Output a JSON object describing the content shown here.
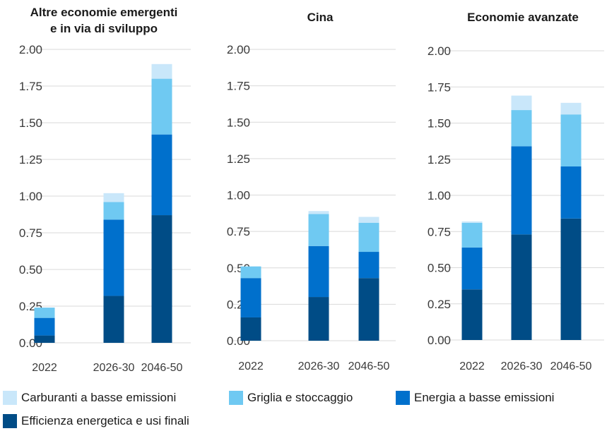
{
  "chart_data": {
    "type": "bar",
    "stacked": true,
    "colors": [
      "#004C86",
      "#0070CC",
      "#6FC9F2",
      "#C9E7FA"
    ],
    "legend": {
      "position": "bottom",
      "entries": [
        "Carburanti a basse emissioni",
        "Griglia e stoccaggio",
        "Energia a basse emissioni",
        "Efficienza energetica e usi finali"
      ]
    },
    "panels": [
      {
        "title_lines": [
          "Altre economie emergenti",
          "e in via di sviluppo"
        ],
        "categories": [
          "2022",
          "2026-30",
          "2046-50"
        ],
        "ylim": [
          0,
          2
        ],
        "yticks": [
          "0.00",
          "0.25",
          "0.50",
          "0.75",
          "1.00",
          "1.25",
          "1.50",
          "1.75",
          "2.00"
        ],
        "series": [
          {
            "name": "Efficienza energetica e usi finali",
            "values": [
              0.05,
              0.32,
              0.87
            ]
          },
          {
            "name": "Energia a basse emissioni",
            "values": [
              0.12,
              0.52,
              0.55
            ]
          },
          {
            "name": "Griglia e stoccaggio",
            "values": [
              0.07,
              0.12,
              0.38
            ]
          },
          {
            "name": "Carburanti a basse emissioni",
            "values": [
              0.0,
              0.06,
              0.1
            ]
          }
        ]
      },
      {
        "title_lines": [
          "Cina"
        ],
        "categories": [
          "2022",
          "2026-30",
          "2046-50"
        ],
        "ylim": [
          0,
          2
        ],
        "yticks": [
          "0.00",
          "0.25",
          "0.50",
          "0.75",
          "1.00",
          "1.25",
          "1.50",
          "1.75",
          "2.00"
        ],
        "series": [
          {
            "name": "Efficienza energetica e usi finali",
            "values": [
              0.16,
              0.3,
              0.43
            ]
          },
          {
            "name": "Energia a basse emissioni",
            "values": [
              0.27,
              0.35,
              0.18
            ]
          },
          {
            "name": "Griglia e stoccaggio",
            "values": [
              0.08,
              0.22,
              0.2
            ]
          },
          {
            "name": "Carburanti a basse emissioni",
            "values": [
              0.0,
              0.02,
              0.04
            ]
          }
        ]
      },
      {
        "title_lines": [
          "Economie avanzate"
        ],
        "categories": [
          "2022",
          "2026-30",
          "2046-50"
        ],
        "ylim": [
          0,
          2
        ],
        "yticks": [
          "0.00",
          "0.25",
          "0.50",
          "0.75",
          "1.00",
          "1.25",
          "1.50",
          "1.75",
          "2.00"
        ],
        "series": [
          {
            "name": "Efficienza energetica e usi finali",
            "values": [
              0.35,
              0.73,
              0.84
            ]
          },
          {
            "name": "Energia a basse emissioni",
            "values": [
              0.29,
              0.61,
              0.36
            ]
          },
          {
            "name": "Griglia e stoccaggio",
            "values": [
              0.17,
              0.25,
              0.36
            ]
          },
          {
            "name": "Carburanti a basse emissioni",
            "values": [
              0.01,
              0.1,
              0.08
            ]
          }
        ]
      }
    ]
  }
}
